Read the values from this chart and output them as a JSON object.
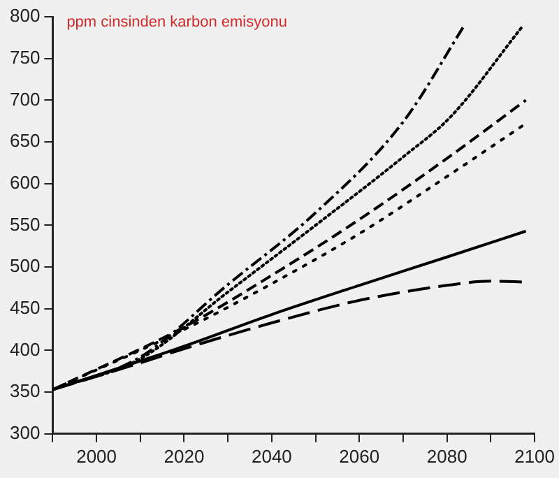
{
  "chart_data": {
    "type": "line",
    "title": "ppm cinsinden karbon emisyonu",
    "xlim": [
      1990,
      2100
    ],
    "xticks": [
      {
        "value": 1990,
        "label": null
      },
      2000,
      {
        "value": 2010,
        "label": null
      },
      2020,
      {
        "value": 2030,
        "label": null
      },
      2040,
      {
        "value": 2050,
        "label": null
      },
      2060,
      {
        "value": 2070,
        "label": null
      },
      2080,
      {
        "value": 2090,
        "label": null
      },
      2100
    ],
    "ylim": [
      300,
      800
    ],
    "yticks": [
      300,
      350,
      400,
      450,
      500,
      550,
      600,
      650,
      700,
      750,
      800
    ],
    "grid": false,
    "legend": false,
    "marker": "none",
    "series": [
      {
        "color": "#000000",
        "line_style": "solid",
        "x": [
          1990,
          2020,
          2040,
          2060,
          2080,
          2098
        ],
        "values": [
          353,
          405,
          443,
          478,
          512,
          543
        ]
      },
      {
        "color": "#000000",
        "line_style": "longdash",
        "x": [
          1990,
          2010,
          2020,
          2040,
          2060,
          2080,
          2090,
          2098
        ],
        "values": [
          353,
          385,
          402,
          433,
          460,
          478,
          483,
          482
        ]
      },
      {
        "color": "#000000",
        "line_style": "dashed",
        "x": [
          1990,
          2020,
          2040,
          2060,
          2081,
          2098
        ],
        "values": [
          353,
          428,
          490,
          557,
          634,
          700
        ]
      },
      {
        "color": "#000000",
        "line_style": "sparsedot",
        "x": [
          1990,
          2020,
          2040,
          2060,
          2081,
          2098
        ],
        "values": [
          353,
          425,
          480,
          540,
          612,
          672
        ]
      },
      {
        "color": "#000000",
        "line_style": "dotted",
        "x": [
          1990,
          2010,
          2030,
          2050,
          2070,
          2081,
          2097
        ],
        "values": [
          353,
          390,
          470,
          550,
          632,
          681,
          787
        ]
      },
      {
        "color": "#000000",
        "line_style": "dashdot",
        "x": [
          1990,
          2010,
          2030,
          2050,
          2070,
          2084
        ],
        "values": [
          353,
          392,
          479,
          565,
          674,
          790
        ]
      }
    ]
  }
}
